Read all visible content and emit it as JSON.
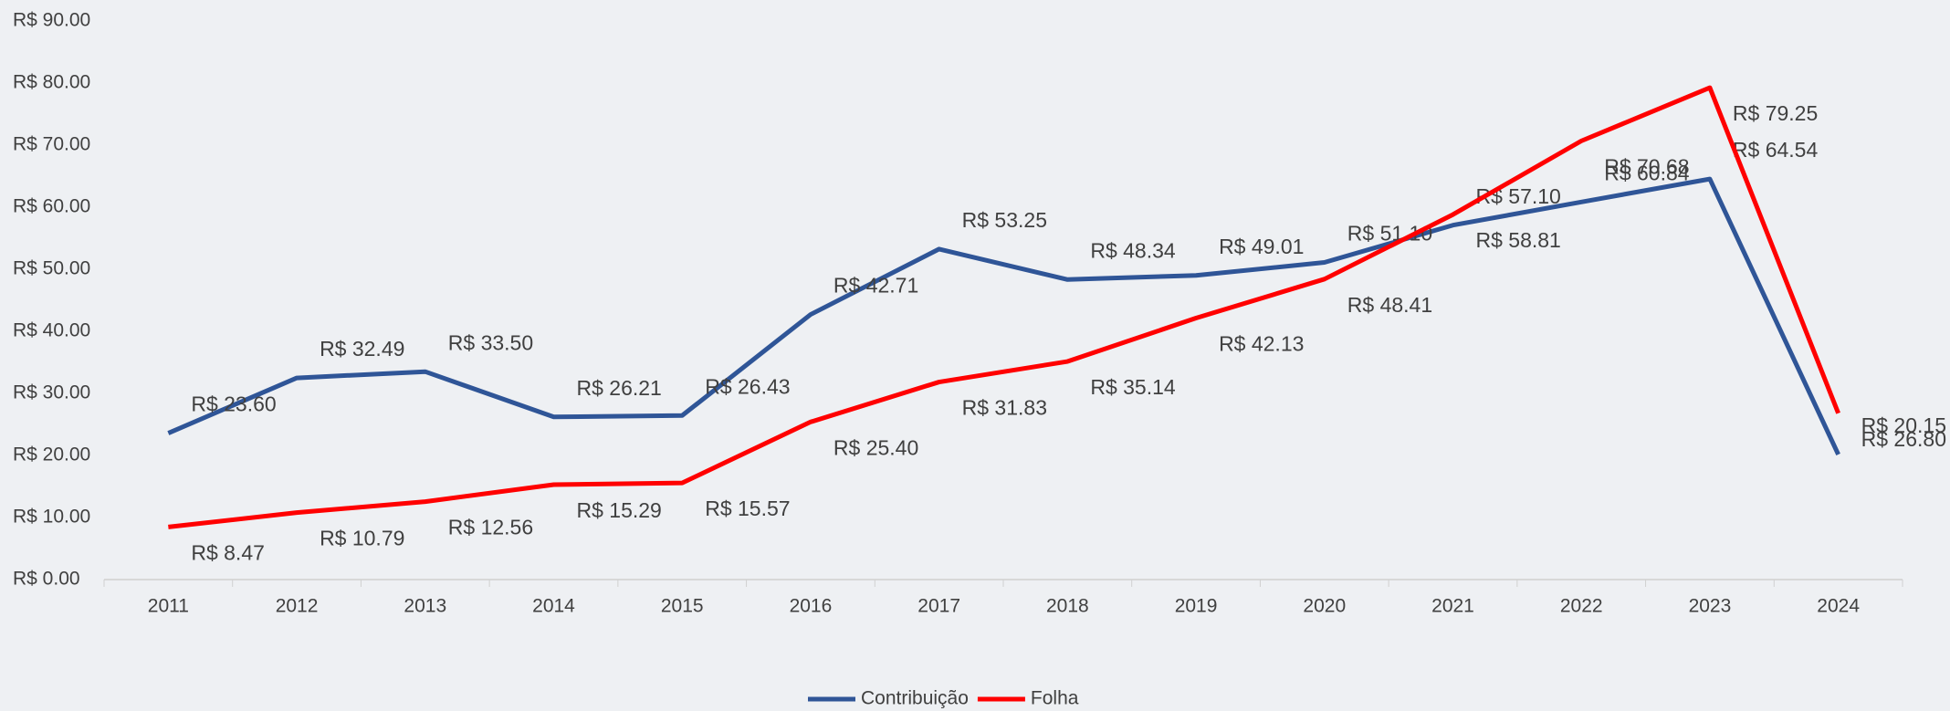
{
  "chart_data": {
    "type": "line",
    "categories": [
      "2011",
      "2012",
      "2013",
      "2014",
      "2015",
      "2016",
      "2017",
      "2018",
      "2019",
      "2020",
      "2021",
      "2022",
      "2023",
      "2024"
    ],
    "series": [
      {
        "name": "Contribuição",
        "color": "#2f5597",
        "values": [
          23.6,
          32.49,
          33.5,
          26.21,
          26.43,
          42.71,
          53.25,
          48.34,
          49.01,
          51.1,
          57.1,
          60.84,
          64.54,
          20.15
        ],
        "value_labels": [
          "R$ 23.60",
          "R$ 32.49",
          "R$ 33.50",
          "R$ 26.21",
          "R$ 26.43",
          "R$ 42.71",
          "R$ 53.25",
          "R$ 48.34",
          "R$ 49.01",
          "R$ 51.10",
          "R$ 57.10",
          "R$ 60.84",
          "R$ 64.54",
          "R$ 20.15"
        ]
      },
      {
        "name": "Folha",
        "color": "#ff0000",
        "values": [
          8.47,
          10.79,
          12.56,
          15.29,
          15.57,
          25.4,
          31.83,
          35.14,
          42.13,
          48.41,
          58.81,
          70.68,
          79.25,
          26.8
        ],
        "value_labels": [
          "R$ 8.47",
          "R$ 10.79",
          "R$ 12.56",
          "R$ 15.29",
          "R$ 15.57",
          "R$ 25.40",
          "R$ 31.83",
          "R$ 35.14",
          "R$ 42.13",
          "R$ 48.41",
          "R$ 58.81",
          "R$ 70.68",
          "R$ 79.25",
          "R$ 26.80"
        ]
      }
    ],
    "ylim": [
      0,
      90
    ],
    "yticks": [
      {
        "value": 0,
        "label": "R$ 0.00"
      },
      {
        "value": 10,
        "label": "R$ 10.00"
      },
      {
        "value": 20,
        "label": "R$ 20.00"
      },
      {
        "value": 30,
        "label": "R$ 30.00"
      },
      {
        "value": 40,
        "label": "R$ 40.00"
      },
      {
        "value": 50,
        "label": "R$ 50.00"
      },
      {
        "value": 60,
        "label": "R$ 60.00"
      },
      {
        "value": 70,
        "label": "R$ 70.00"
      },
      {
        "value": 80,
        "label": "R$ 80.00"
      },
      {
        "value": 90,
        "label": "R$ 90.00"
      }
    ],
    "grid": false,
    "legend": "bottom"
  }
}
